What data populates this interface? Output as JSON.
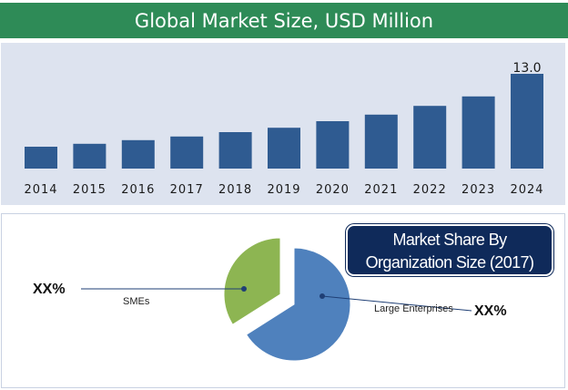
{
  "chart_data": [
    {
      "type": "bar",
      "title": "Global Market Size, USD Million",
      "categories": [
        "2014",
        "2015",
        "2016",
        "2017",
        "2018",
        "2019",
        "2020",
        "2021",
        "2022",
        "2023",
        "2024"
      ],
      "values": [
        3.0,
        3.4,
        3.9,
        4.4,
        5.0,
        5.6,
        6.5,
        7.4,
        8.6,
        9.9,
        13.0
      ],
      "data_labels": {
        "2024": "13.0"
      },
      "ylim": [
        0,
        14
      ],
      "grid": false,
      "colors": {
        "bar": "#2f5b91",
        "background": "#dde3ef",
        "header": "#2e8b57"
      }
    },
    {
      "type": "pie",
      "title": "Market Share By Organization Size (2017)",
      "title_lines": [
        "Market Share By",
        "Organization Size (2017)"
      ],
      "slices": [
        {
          "name": "Large Enterprises",
          "value": 66,
          "label": "XX%",
          "color": "#4f81bd"
        },
        {
          "name": "SMEs",
          "value": 34,
          "label": "XX%",
          "color": "#8db552"
        }
      ]
    }
  ]
}
